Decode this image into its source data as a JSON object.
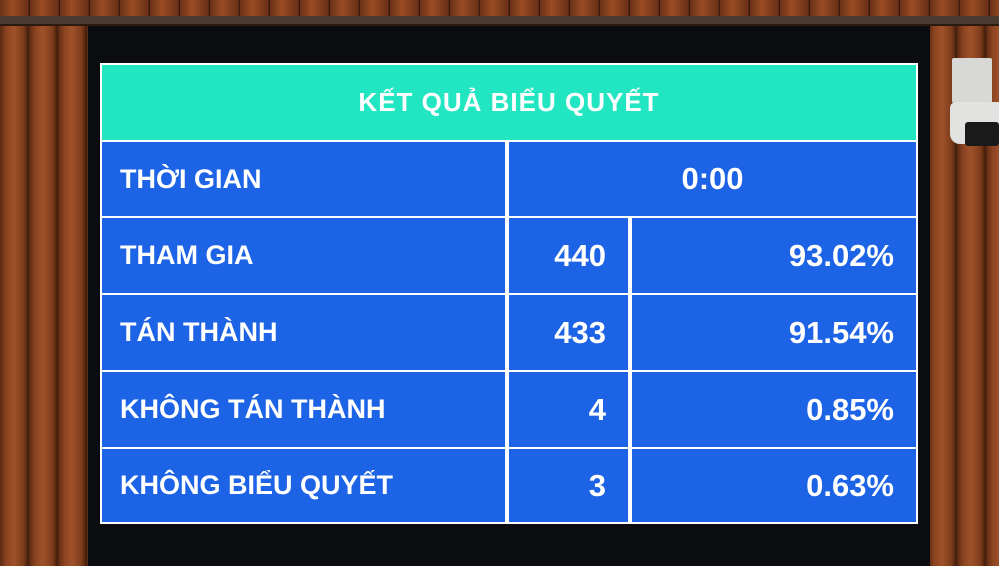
{
  "title": "KẾT QUẢ BIỂU QUYẾT",
  "time": {
    "label": "THỜI GIAN",
    "value": "0:00"
  },
  "rows": [
    {
      "label": "THAM GIA",
      "count": "440",
      "percent": "93.02%"
    },
    {
      "label": "TÁN THÀNH",
      "count": "433",
      "percent": "91.54%"
    },
    {
      "label": "KHÔNG TÁN THÀNH",
      "count": "4",
      "percent": "0.85%"
    },
    {
      "label": "KHÔNG BIỂU QUYẾT",
      "count": "3",
      "percent": "0.63%"
    }
  ],
  "colors": {
    "header": "#22e6c2",
    "cells": "#1d63e6",
    "text": "#ffffff"
  }
}
